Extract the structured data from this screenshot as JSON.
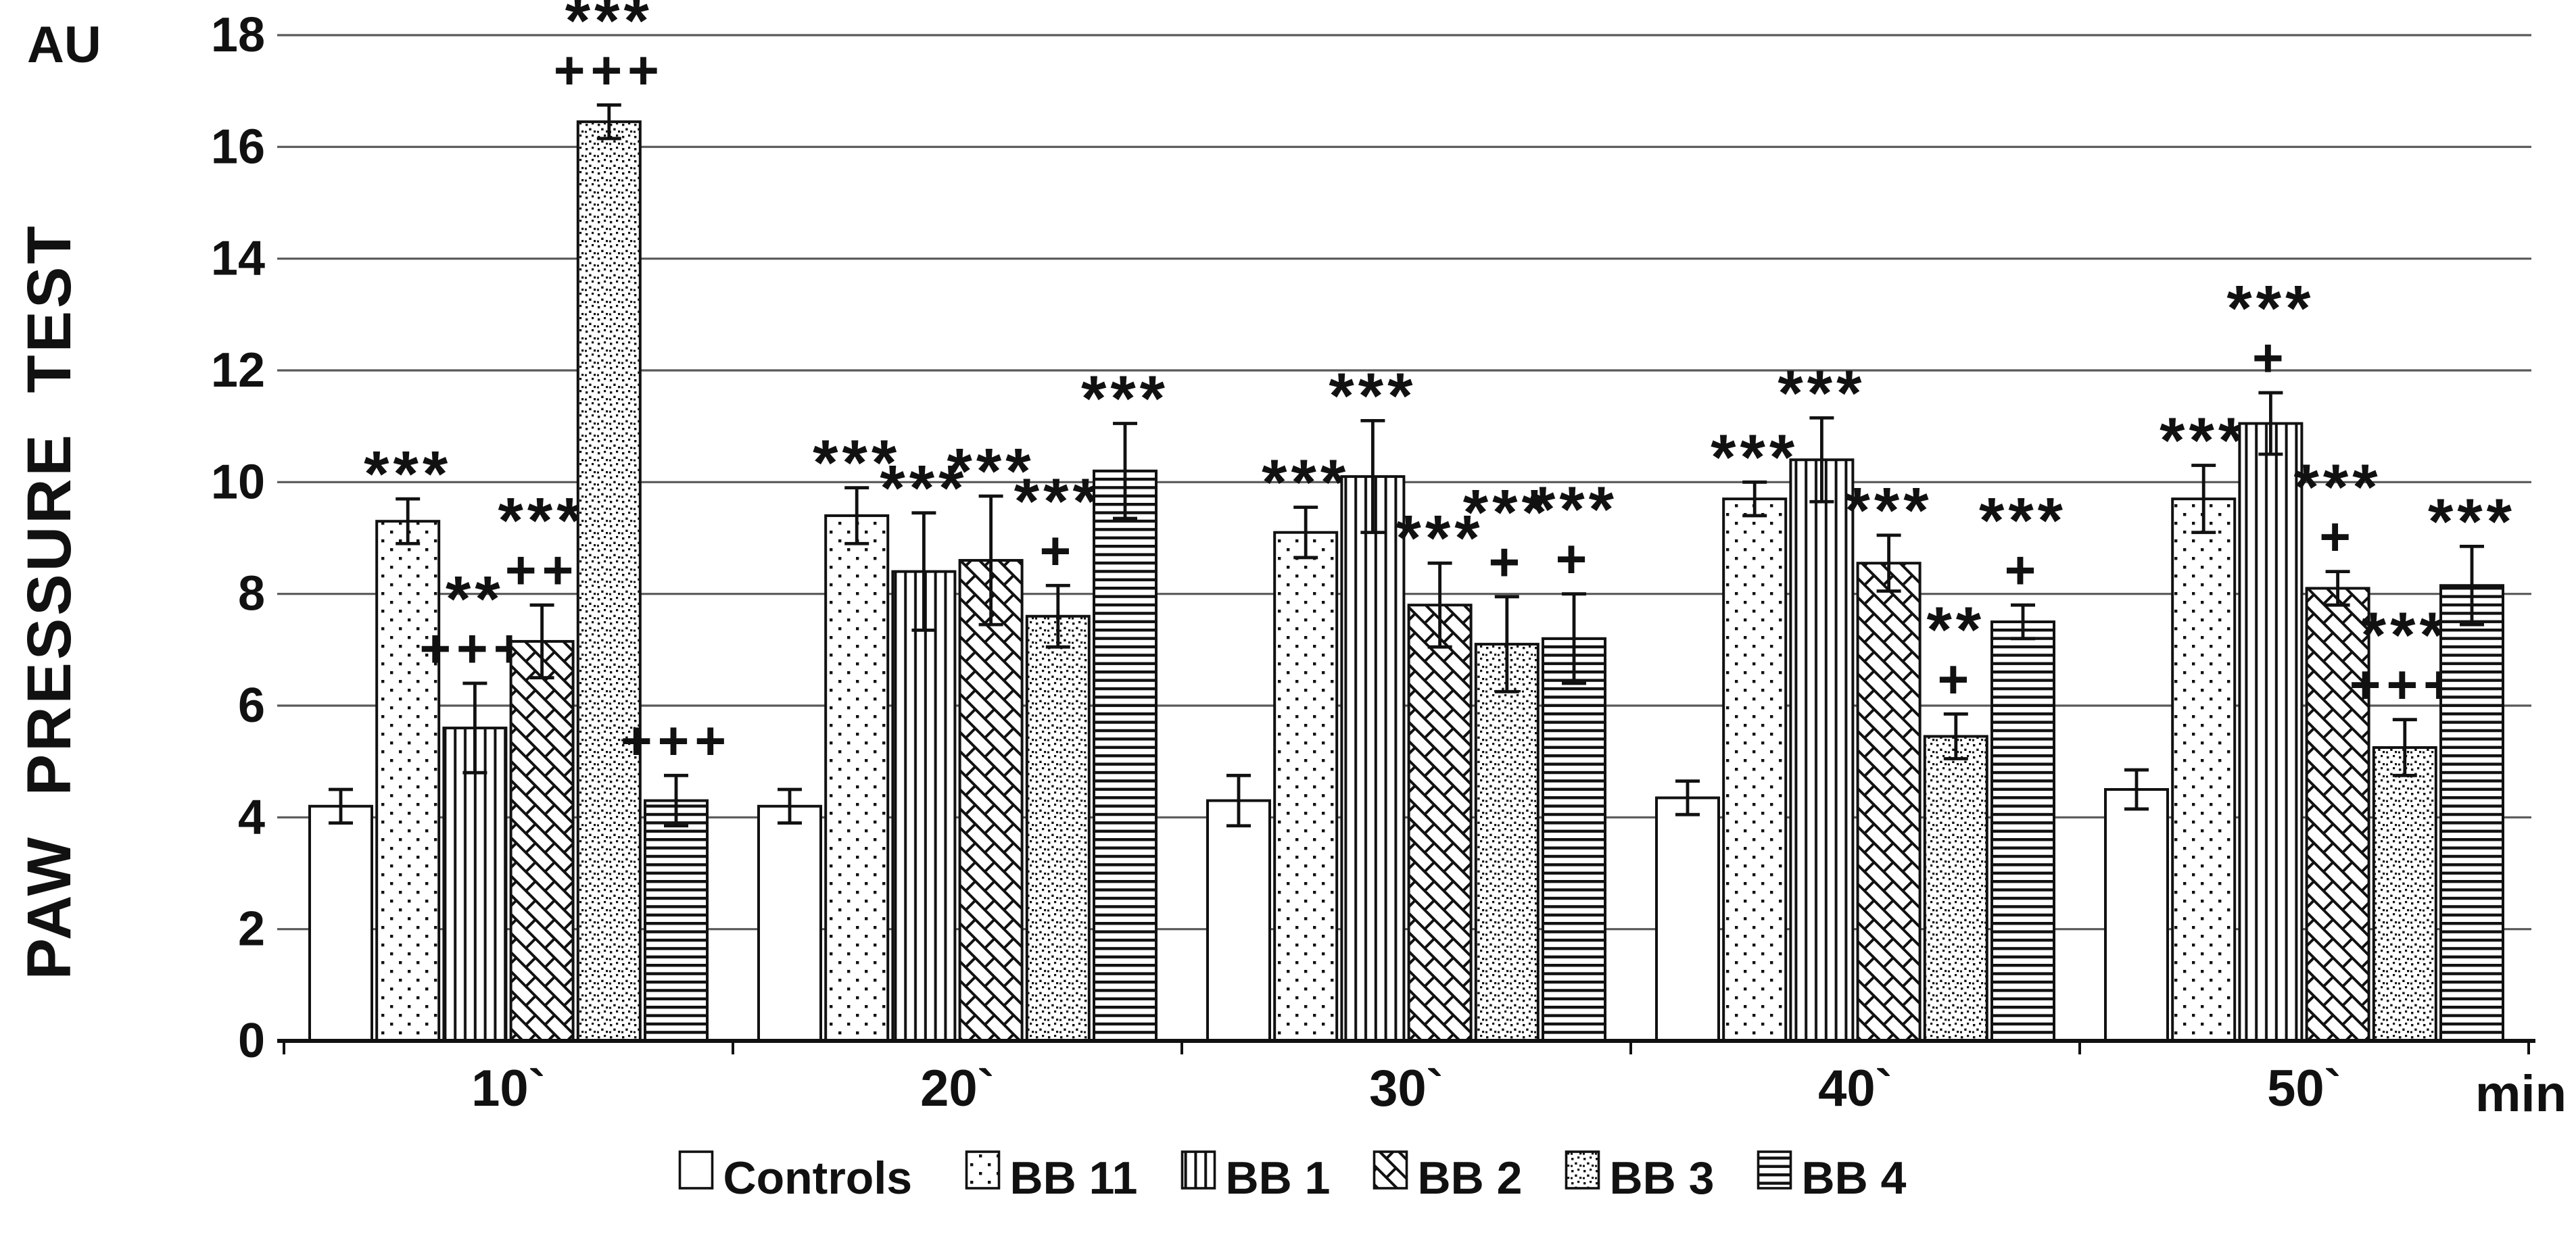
{
  "figure": {
    "background": "#ffffff",
    "ink": "#111111",
    "grid_color": "#59595c"
  },
  "chart_data": {
    "type": "bar",
    "title": "",
    "ylabel": "PAW PRESSURE TEST",
    "y_unit": "AU",
    "x_unit": "min",
    "ylim": [
      0,
      18
    ],
    "yticks": [
      0,
      2,
      4,
      6,
      8,
      10,
      12,
      14,
      16,
      18
    ],
    "grid": true,
    "legend_position": "bottom",
    "categories": [
      "10`",
      "20`",
      "30`",
      "40`",
      "50`"
    ],
    "series": [
      {
        "name": "Controls",
        "pattern": "plain",
        "values": [
          4.2,
          4.2,
          4.3,
          4.35,
          4.5
        ],
        "errors": [
          0.3,
          0.3,
          0.45,
          0.3,
          0.35
        ],
        "annotations": [
          "",
          "",
          "",
          "",
          ""
        ]
      },
      {
        "name": "BB 11",
        "pattern": "dots",
        "values": [
          9.3,
          9.4,
          9.1,
          9.7,
          9.7
        ],
        "errors": [
          0.4,
          0.5,
          0.45,
          0.3,
          0.6
        ],
        "annotations": [
          "***",
          "***",
          "***",
          "***",
          "***"
        ]
      },
      {
        "name": "BB 1",
        "pattern": "vlines",
        "values": [
          5.6,
          8.4,
          10.1,
          10.4,
          11.05
        ],
        "errors": [
          0.8,
          1.05,
          1.0,
          0.75,
          0.55
        ],
        "annotations": [
          "**|+++",
          "***",
          "***",
          "***",
          "***|+"
        ]
      },
      {
        "name": "BB 2",
        "pattern": "bricks",
        "values": [
          7.15,
          8.6,
          7.8,
          8.55,
          8.1
        ],
        "errors": [
          0.65,
          1.15,
          0.75,
          0.5,
          0.3
        ],
        "annotations": [
          "***|++",
          "***",
          "***",
          "***",
          "***|+"
        ]
      },
      {
        "name": "BB 3",
        "pattern": "stipple",
        "values": [
          16.45,
          7.6,
          7.1,
          5.45,
          5.25
        ],
        "errors": [
          0.3,
          0.55,
          0.85,
          0.4,
          0.5
        ],
        "annotations": [
          "***|+++",
          "***|+",
          "***|+",
          "**|+",
          "***|+++"
        ]
      },
      {
        "name": "BB 4",
        "pattern": "hlines",
        "values": [
          4.3,
          10.2,
          7.2,
          7.5,
          8.15
        ],
        "errors": [
          0.45,
          0.85,
          0.8,
          0.3,
          0.7
        ],
        "annotations": [
          "+++",
          "***",
          "***|+",
          "***|+",
          "***"
        ]
      }
    ]
  }
}
